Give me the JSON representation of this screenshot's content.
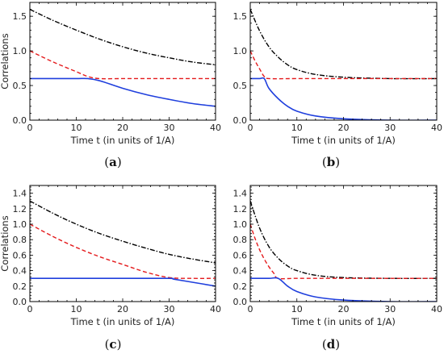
{
  "colors": {
    "sum_curve": "#000000",
    "dashed_curve": "#e41a1c",
    "solid_curve": "#1f3fdd"
  },
  "chart_data": [
    {
      "type": "line",
      "caption": "(a)",
      "xlabel": "Time t (in units of 1/A)",
      "ylabel": "Correlations",
      "xlim": [
        0,
        40
      ],
      "ylim": [
        0,
        1.7
      ],
      "xticks": [
        0,
        10,
        20,
        30,
        40
      ],
      "yticks": [
        0.0,
        0.5,
        1.0,
        1.5
      ],
      "xtick_labels": [
        "0",
        "10",
        "20",
        "30",
        "40"
      ],
      "ytick_labels": [
        "0.0",
        "0.5",
        "1.0",
        "1.5"
      ],
      "grid": false,
      "series": [
        {
          "style": "dash-dot",
          "color": "#000000",
          "x": [
            0,
            5,
            10,
            15,
            20,
            25,
            30,
            35,
            40
          ],
          "y": [
            1.6,
            1.44,
            1.3,
            1.17,
            1.06,
            0.97,
            0.9,
            0.84,
            0.8
          ]
        },
        {
          "style": "dashed",
          "color": "#e41a1c",
          "x": [
            0,
            5,
            10,
            12.5,
            15,
            20,
            25,
            30,
            35,
            40
          ],
          "y": [
            1.0,
            0.84,
            0.7,
            0.63,
            0.6,
            0.6,
            0.6,
            0.6,
            0.6,
            0.6
          ]
        },
        {
          "style": "solid",
          "color": "#1f3fdd",
          "x": [
            0,
            5,
            10,
            12.5,
            15,
            20,
            25,
            30,
            35,
            40
          ],
          "y": [
            0.6,
            0.6,
            0.6,
            0.6,
            0.57,
            0.46,
            0.37,
            0.3,
            0.24,
            0.2
          ]
        }
      ]
    },
    {
      "type": "line",
      "caption": "(b)",
      "xlabel": "Time t (in units of 1/A)",
      "ylabel": "",
      "xlim": [
        0,
        40
      ],
      "ylim": [
        0,
        1.7
      ],
      "xticks": [
        0,
        10,
        20,
        30,
        40
      ],
      "yticks": [
        0.0,
        0.5,
        1.0,
        1.5
      ],
      "xtick_labels": [
        "0",
        "10",
        "20",
        "30",
        "40"
      ],
      "ytick_labels": [
        "0.0",
        "0.5",
        "1.0",
        "1.5"
      ],
      "grid": false,
      "series": [
        {
          "style": "dash-dot",
          "color": "#000000",
          "x": [
            0,
            2,
            4,
            6,
            8,
            10,
            14,
            20,
            30,
            40
          ],
          "y": [
            1.6,
            1.29,
            1.06,
            0.91,
            0.8,
            0.73,
            0.66,
            0.62,
            0.6,
            0.6
          ]
        },
        {
          "style": "dashed",
          "color": "#e41a1c",
          "x": [
            0,
            1,
            2,
            3,
            4,
            10,
            20,
            30,
            40
          ],
          "y": [
            1.0,
            0.86,
            0.74,
            0.63,
            0.6,
            0.6,
            0.6,
            0.6,
            0.6
          ]
        },
        {
          "style": "solid",
          "color": "#1f3fdd",
          "x": [
            0,
            2,
            3,
            4,
            6,
            8,
            10,
            14,
            20,
            30,
            40
          ],
          "y": [
            0.6,
            0.6,
            0.6,
            0.46,
            0.31,
            0.2,
            0.13,
            0.06,
            0.02,
            0.0,
            0.0
          ]
        }
      ]
    },
    {
      "type": "line",
      "caption": "(c)",
      "xlabel": "Time t (in units of 1/A)",
      "ylabel": "Correlations",
      "xlim": [
        0,
        40
      ],
      "ylim": [
        0,
        1.5
      ],
      "xticks": [
        0,
        10,
        20,
        30,
        40
      ],
      "yticks": [
        0.0,
        0.2,
        0.4,
        0.6,
        0.8,
        1.0,
        1.2,
        1.4
      ],
      "xtick_labels": [
        "0",
        "10",
        "20",
        "30",
        "40"
      ],
      "ytick_labels": [
        "0.0",
        "0.2",
        "0.4",
        "0.6",
        "0.8",
        "1.0",
        "1.2",
        "1.4"
      ],
      "grid": false,
      "series": [
        {
          "style": "dash-dot",
          "color": "#000000",
          "x": [
            0,
            5,
            10,
            15,
            20,
            25,
            30,
            35,
            40
          ],
          "y": [
            1.3,
            1.14,
            1.0,
            0.88,
            0.78,
            0.69,
            0.61,
            0.55,
            0.5
          ]
        },
        {
          "style": "dashed",
          "color": "#e41a1c",
          "x": [
            0,
            5,
            10,
            15,
            20,
            25,
            30,
            35,
            40
          ],
          "y": [
            1.0,
            0.84,
            0.7,
            0.58,
            0.48,
            0.38,
            0.31,
            0.3,
            0.3
          ]
        },
        {
          "style": "solid",
          "color": "#1f3fdd",
          "x": [
            0,
            10,
            20,
            30,
            31,
            35,
            40
          ],
          "y": [
            0.3,
            0.3,
            0.3,
            0.3,
            0.29,
            0.25,
            0.2
          ]
        }
      ]
    },
    {
      "type": "line",
      "caption": "(d)",
      "xlabel": "Time t (in units of 1/A)",
      "ylabel": "",
      "xlim": [
        0,
        40
      ],
      "ylim": [
        0,
        1.5
      ],
      "xticks": [
        0,
        10,
        20,
        30,
        40
      ],
      "yticks": [
        0.0,
        0.2,
        0.4,
        0.6,
        0.8,
        1.0,
        1.2,
        1.4
      ],
      "xtick_labels": [
        "0",
        "10",
        "20",
        "30",
        "40"
      ],
      "ytick_labels": [
        "0.0",
        "0.2",
        "0.4",
        "0.6",
        "0.8",
        "1.0",
        "1.2",
        "1.4"
      ],
      "grid": false,
      "series": [
        {
          "style": "dash-dot",
          "color": "#000000",
          "x": [
            0,
            2,
            4,
            6,
            8,
            10,
            14,
            20,
            30,
            40
          ],
          "y": [
            1.3,
            0.95,
            0.71,
            0.56,
            0.46,
            0.4,
            0.34,
            0.31,
            0.3,
            0.3
          ]
        },
        {
          "style": "dashed",
          "color": "#e41a1c",
          "x": [
            0,
            1,
            2,
            3,
            4,
            5,
            6,
            10,
            20,
            30,
            40
          ],
          "y": [
            1.0,
            0.82,
            0.67,
            0.55,
            0.45,
            0.37,
            0.3,
            0.3,
            0.3,
            0.3,
            0.3
          ]
        },
        {
          "style": "solid",
          "color": "#1f3fdd",
          "x": [
            0,
            4,
            6,
            8,
            10,
            14,
            20,
            30,
            40
          ],
          "y": [
            0.3,
            0.3,
            0.3,
            0.2,
            0.13,
            0.06,
            0.02,
            0.0,
            0.0
          ]
        }
      ]
    }
  ]
}
